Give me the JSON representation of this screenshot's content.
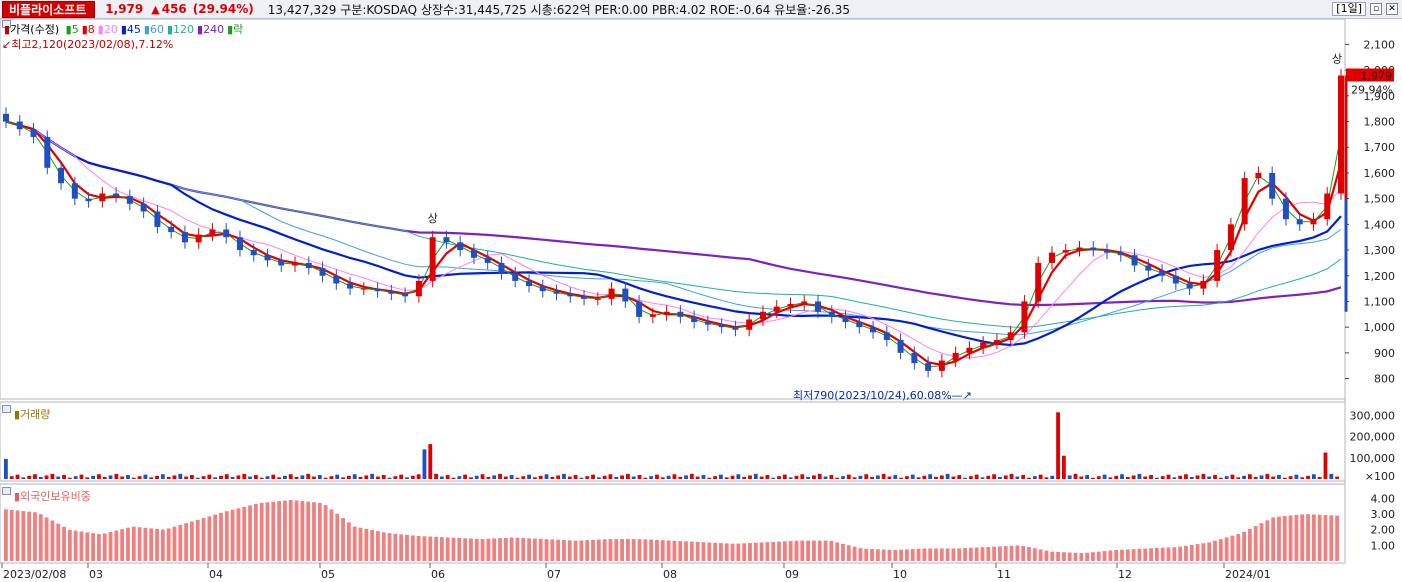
{
  "header": {
    "stock_name": "비플라이소프트",
    "price": "1,979",
    "change_arrow": "▲",
    "change": "456",
    "change_pct": "(29.94%)",
    "info": "13,427,329  구분:KOSDAQ 상장수:31,445,725 시총:622억 PER:0.00 PBR:4.02 ROE:-0.64 유보율:-26.35",
    "period": "[1일]"
  },
  "legend": {
    "price_label": "가격(수정)",
    "ma": [
      {
        "label": "5",
        "color": "#1a9e1a"
      },
      {
        "label": "8",
        "color": "#e00000"
      },
      {
        "label": "20",
        "color": "#ff80ff"
      },
      {
        "label": "45",
        "color": "#0020d0"
      },
      {
        "label": "60",
        "color": "#40a0e0"
      },
      {
        "label": "120",
        "color": "#20b0a0"
      },
      {
        "label": "240",
        "color": "#8020c0"
      },
      {
        "label": "락",
        "color": "#1a9e1a"
      }
    ]
  },
  "annotations": {
    "high": "최고2,120(2023/02/08),7.12%",
    "low": "최저790(2023/10/24),60.08%",
    "upper_limit_1": "상",
    "upper_limit_2": "상",
    "current_price_tag": "1,979",
    "current_pct_tag": "29.94%"
  },
  "volume_panel": {
    "label": "거래량"
  },
  "foreign_panel": {
    "label": "외국인보유비중"
  },
  "chart_data": [
    {
      "type": "candlestick",
      "title": "가격(수정)",
      "ylim": [
        740,
        2160
      ],
      "y_ticks": [
        "2,100",
        "2,000",
        "1,900",
        "1,800",
        "1,700",
        "1,600",
        "1,500",
        "1,400",
        "1,300",
        "1,200",
        "1,100",
        "1,000",
        "900",
        "800"
      ],
      "x_ticks": [
        "2023/02/08",
        "03",
        "04",
        "05",
        "06",
        "07",
        "08",
        "09",
        "10",
        "11",
        "12",
        "2024/01"
      ],
      "key_points": [
        {
          "date": "2023/02/08",
          "value": 2120,
          "label": "high"
        },
        {
          "date": "2023/10/24",
          "value": 790,
          "label": "low"
        },
        {
          "date": "last",
          "value": 1979,
          "label": "close"
        }
      ],
      "close_path": [
        1800,
        1770,
        1740,
        1620,
        1560,
        1500,
        1490,
        1520,
        1510,
        1480,
        1450,
        1390,
        1370,
        1330,
        1360,
        1380,
        1350,
        1300,
        1280,
        1260,
        1240,
        1250,
        1230,
        1200,
        1170,
        1150,
        1150,
        1140,
        1130,
        1120,
        1180,
        1350,
        1330,
        1300,
        1270,
        1250,
        1210,
        1180,
        1160,
        1140,
        1130,
        1120,
        1110,
        1110,
        1150,
        1100,
        1040,
        1050,
        1060,
        1040,
        1020,
        1010,
        1000,
        990,
        1030,
        1060,
        1080,
        1090,
        1100,
        1060,
        1040,
        1020,
        1000,
        980,
        950,
        900,
        860,
        830,
        870,
        900,
        920,
        940,
        950,
        980,
        1100,
        1250,
        1290,
        1300,
        1310,
        1300,
        1290,
        1280,
        1240,
        1220,
        1200,
        1170,
        1150,
        1180,
        1300,
        1400,
        1580,
        1600,
        1500,
        1420,
        1400,
        1420,
        1520,
        1979
      ],
      "series": [
        {
          "name": "5",
          "color": "#1a9e1a"
        },
        {
          "name": "8",
          "color": "#e00000"
        },
        {
          "name": "20",
          "color": "#ff80ff"
        },
        {
          "name": "45",
          "color": "#0020d0"
        },
        {
          "name": "60",
          "color": "#40a0e0"
        },
        {
          "name": "120",
          "color": "#20b0a0"
        },
        {
          "name": "240",
          "color": "#8020c0"
        }
      ]
    },
    {
      "type": "bar",
      "title": "거래량",
      "y_ticks": [
        "300,000",
        "200,000",
        "100,000"
      ],
      "unit": "×100",
      "ylim": [
        0,
        340000
      ],
      "spikes": [
        {
          "index": 0,
          "value": 95000
        },
        {
          "index": 72,
          "value": 140000
        },
        {
          "index": 73,
          "value": 165000
        },
        {
          "index": 181,
          "value": 315000
        },
        {
          "index": 182,
          "value": 110000
        },
        {
          "index": 227,
          "value": 125000
        }
      ],
      "base_value": 20000
    },
    {
      "type": "bar",
      "title": "외국인보유비중",
      "y_ticks": [
        "4.00",
        "3.00",
        "2.00",
        "1.00"
      ],
      "ylim": [
        0,
        4.6
      ],
      "profile": [
        3.3,
        3.1,
        2.0,
        1.7,
        2.2,
        2.0,
        2.6,
        3.2,
        3.7,
        3.9,
        3.7,
        2.2,
        1.8,
        1.6,
        1.5,
        1.4,
        1.5,
        1.4,
        1.3,
        1.4,
        1.4,
        1.3,
        1.2,
        1.1,
        1.2,
        1.3,
        1.3,
        0.8,
        0.7,
        0.8,
        0.8,
        0.9,
        1.0,
        0.6,
        0.5,
        0.7,
        0.8,
        0.9,
        1.2,
        1.8,
        2.8,
        3.0,
        2.9
      ]
    }
  ]
}
